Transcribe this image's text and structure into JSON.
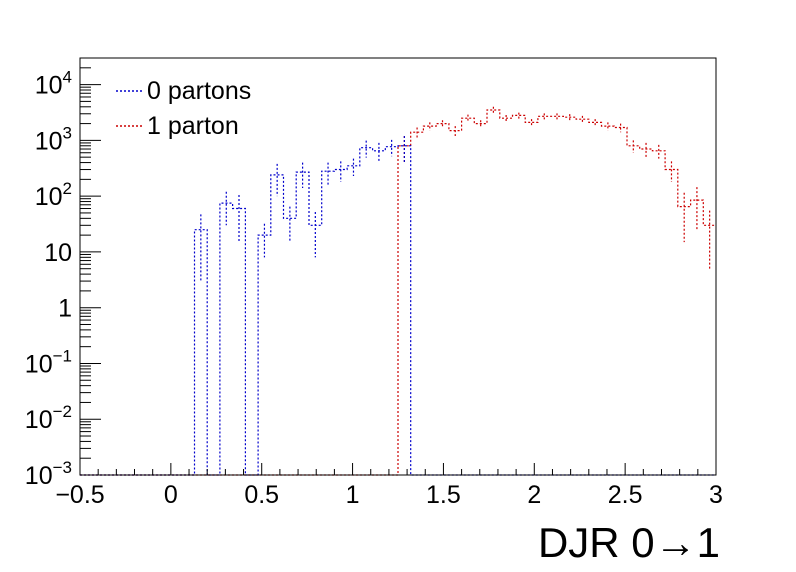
{
  "chart_data": {
    "type": "histogram",
    "xlabel": "DJR 0→1",
    "ylabel": "",
    "xlim": [
      -0.5,
      3.0
    ],
    "ylim": [
      0.001,
      30000
    ],
    "y_scale": "log",
    "grid": false,
    "legend_position": "top-left",
    "x_ticks": [
      -0.5,
      0,
      0.5,
      1,
      1.5,
      2,
      2.5,
      3
    ],
    "x_tick_labels": [
      "−0.5",
      "0",
      "0.5",
      "1",
      "1.5",
      "2",
      "2.5",
      "3"
    ],
    "y_ticks": [
      {
        "value": 0.001,
        "base": "10",
        "exp": "−3"
      },
      {
        "value": 0.01,
        "base": "10",
        "exp": "−2"
      },
      {
        "value": 0.1,
        "base": "10",
        "exp": "−1"
      },
      {
        "value": 1,
        "base": "1",
        "exp": ""
      },
      {
        "value": 10,
        "base": "10",
        "exp": ""
      },
      {
        "value": 100,
        "base": "10",
        "exp": "2"
      },
      {
        "value": 1000,
        "base": "10",
        "exp": "3"
      },
      {
        "value": 10000,
        "base": "10",
        "exp": "4"
      }
    ],
    "bin_low_edges": [
      -0.5,
      -0.43,
      -0.36,
      -0.29,
      -0.22,
      -0.15,
      -0.08,
      -0.01,
      0.06,
      0.13,
      0.2,
      0.27,
      0.34,
      0.41,
      0.48,
      0.55,
      0.62,
      0.69,
      0.76,
      0.83,
      0.9,
      0.97,
      1.04,
      1.11,
      1.18,
      1.25,
      1.32,
      1.39,
      1.46,
      1.53,
      1.6,
      1.67,
      1.74,
      1.81,
      1.88,
      1.95,
      2.02,
      2.09,
      2.16,
      2.23,
      2.3,
      2.37,
      2.44,
      2.51,
      2.58,
      2.65,
      2.72,
      2.79,
      2.86,
      2.93
    ],
    "bin_width": 0.07,
    "series": [
      {
        "name": "0 partons",
        "color": "#0000cc",
        "line_style": "dotted",
        "values": [
          0,
          0,
          0,
          0,
          0,
          0,
          0,
          0,
          0,
          25,
          0,
          75,
          60,
          0,
          20,
          240,
          40,
          270,
          30,
          280,
          300,
          350,
          740,
          650,
          770,
          800,
          0,
          0,
          0,
          0,
          0,
          0,
          0,
          0,
          0,
          0,
          0,
          0,
          0,
          0,
          0,
          0,
          0,
          0,
          0,
          0,
          0,
          0,
          0,
          0
        ],
        "errors": [
          0,
          0,
          0,
          0,
          0,
          0,
          0,
          0,
          0,
          22,
          0,
          45,
          45,
          0,
          12,
          140,
          25,
          130,
          22,
          120,
          120,
          120,
          250,
          250,
          250,
          400,
          0,
          0,
          0,
          0,
          0,
          0,
          0,
          0,
          0,
          0,
          0,
          0,
          0,
          0,
          0,
          0,
          0,
          0,
          0,
          0,
          0,
          0,
          0,
          0
        ]
      },
      {
        "name": "1 parton",
        "color": "#cc0000",
        "line_style": "dotted",
        "values": [
          0,
          0,
          0,
          0,
          0,
          0,
          0,
          0,
          0,
          0,
          0,
          0,
          0,
          0,
          0,
          0,
          0,
          0,
          0,
          0,
          0,
          0,
          0,
          0,
          0,
          800,
          1400,
          1800,
          2000,
          1500,
          2500,
          2000,
          3500,
          2500,
          2800,
          2100,
          2700,
          2700,
          2600,
          2400,
          2100,
          1800,
          1700,
          800,
          700,
          650,
          300,
          65,
          85,
          30
        ],
        "errors": [
          0,
          0,
          0,
          0,
          0,
          0,
          0,
          0,
          0,
          0,
          0,
          0,
          0,
          0,
          0,
          0,
          0,
          0,
          0,
          0,
          0,
          0,
          0,
          0,
          0,
          400,
          300,
          300,
          300,
          300,
          400,
          300,
          500,
          350,
          350,
          300,
          350,
          350,
          350,
          350,
          300,
          300,
          300,
          200,
          200,
          180,
          120,
          50,
          60,
          25
        ]
      }
    ]
  }
}
